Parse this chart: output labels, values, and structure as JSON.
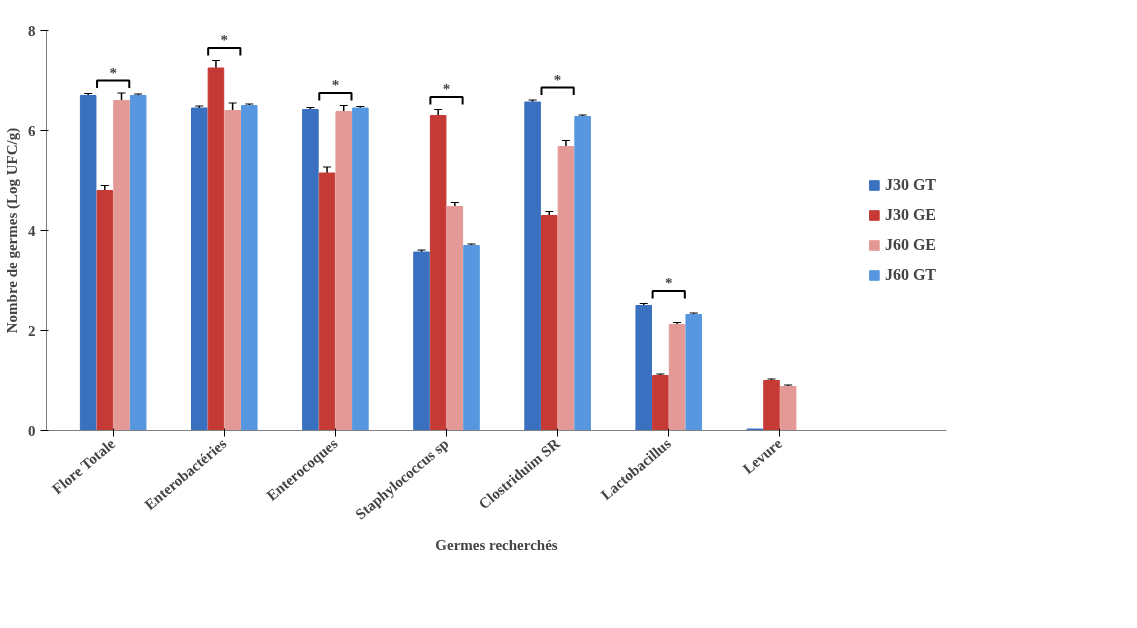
{
  "chart_data": {
    "type": "bar",
    "xlabel": "Germes recherchés",
    "ylabel": "Nombre de germes (Log UFC/g)",
    "categories": [
      "Flore Totale",
      "Enterobactéries",
      "Enterocoques",
      "Staphylococcus sp",
      "Clostriduim SR",
      "Lactobacillus",
      "Levure"
    ],
    "series": [
      {
        "name": "J30 GT",
        "color": "#3a70c0",
        "values": [
          6.7,
          6.45,
          6.42,
          3.57,
          6.57,
          2.5,
          0.03
        ],
        "errors": [
          0.04,
          0.04,
          0.04,
          0.04,
          0.04,
          0.04,
          null
        ]
      },
      {
        "name": "J30 GE",
        "color": "#c63a36",
        "values": [
          4.8,
          7.25,
          5.15,
          6.3,
          4.3,
          1.1,
          1.0
        ],
        "errors": [
          0.1,
          0.15,
          0.12,
          0.12,
          0.08,
          0.03,
          0.03
        ]
      },
      {
        "name": "J60 GE",
        "color": "#e39a96",
        "values": [
          6.6,
          6.4,
          6.38,
          4.48,
          5.68,
          2.12,
          0.88
        ],
        "errors": [
          0.15,
          0.15,
          0.12,
          0.08,
          0.12,
          0.04,
          0.03
        ]
      },
      {
        "name": "J60 GT",
        "color": "#5797e0",
        "values": [
          6.7,
          6.5,
          6.45,
          3.7,
          6.28,
          2.32,
          null
        ],
        "errors": [
          0.03,
          0.03,
          0.03,
          0.03,
          0.03,
          0.03,
          null
        ]
      }
    ],
    "annotations": [
      "*",
      "*",
      "*",
      "*",
      "*",
      "*"
    ],
    "ylim": [
      0,
      8
    ],
    "yticks": [
      0,
      2,
      4,
      6,
      8
    ],
    "grid": false,
    "legend": "right"
  }
}
